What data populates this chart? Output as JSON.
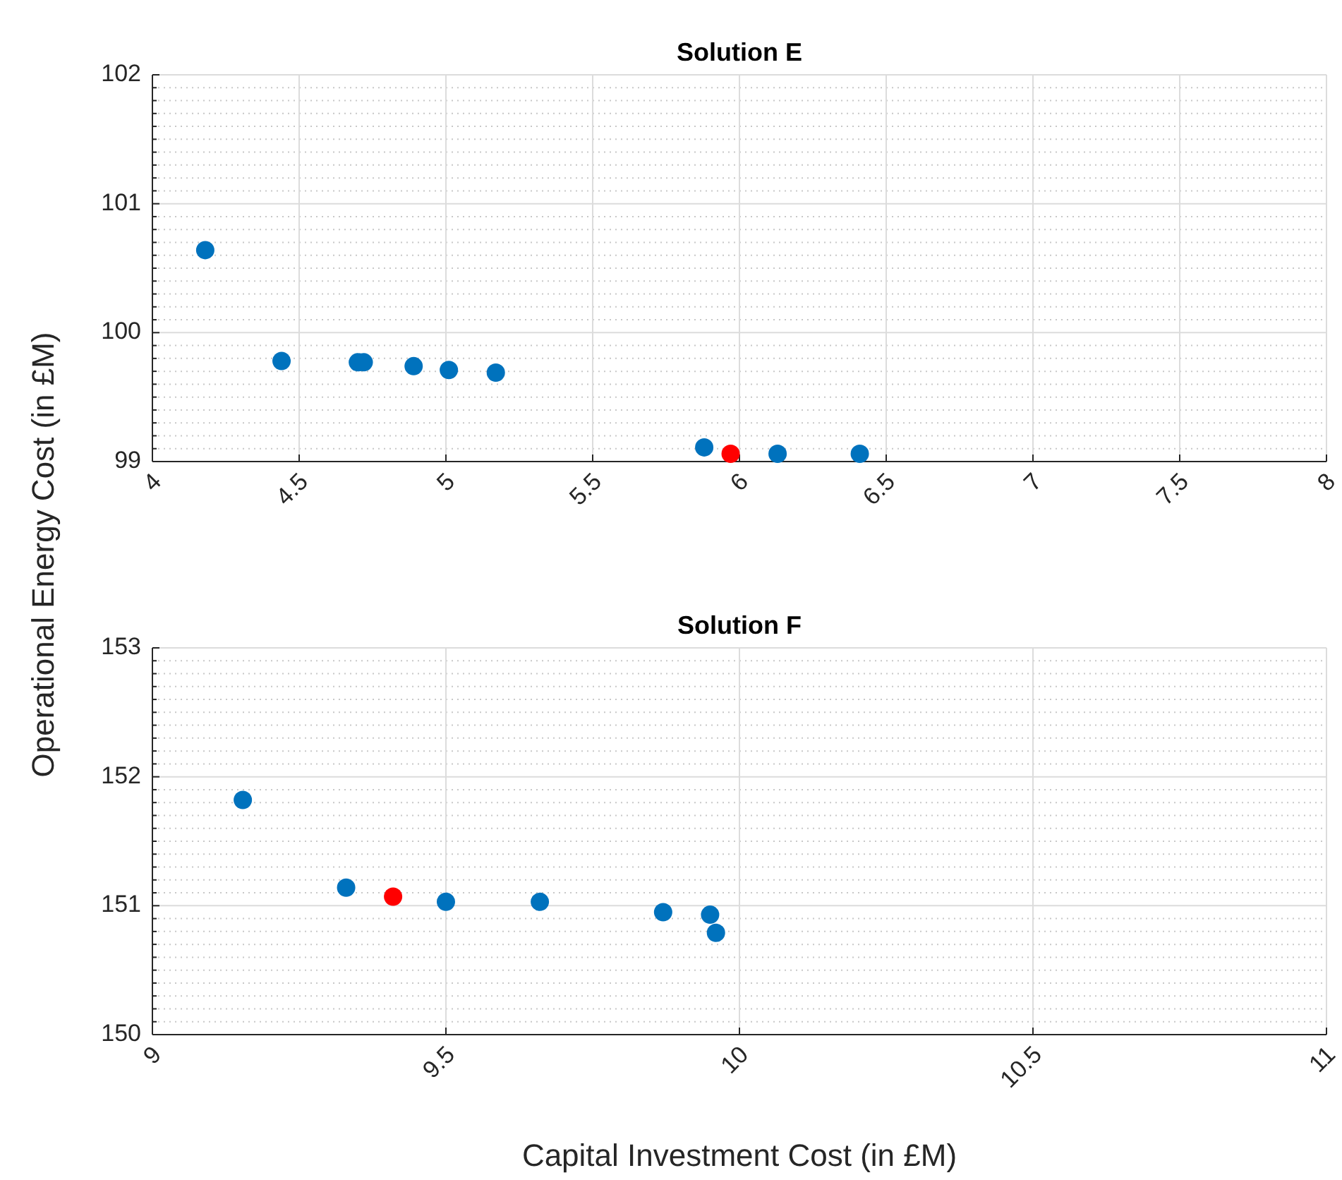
{
  "chart_data": [
    {
      "type": "scatter",
      "title": "Solution E",
      "ylabel": "Operational Energy Cost (in £M)",
      "xlim": [
        4,
        8
      ],
      "xticks": [
        4,
        4.5,
        5,
        5.5,
        6,
        6.5,
        7,
        7.5,
        8
      ],
      "ylim": [
        99,
        102
      ],
      "yticks": [
        99,
        {
          "value": 99.1,
          "label": null
        },
        {
          "value": 99.2,
          "label": null
        },
        {
          "value": 99.3,
          "label": null
        },
        {
          "value": 99.4,
          "label": null
        },
        {
          "value": 99.5,
          "label": null
        },
        {
          "value": 99.6,
          "label": null
        },
        {
          "value": 99.7,
          "label": null
        },
        {
          "value": 99.8,
          "label": null
        },
        {
          "value": 99.9,
          "label": null
        },
        100,
        {
          "value": 100.1,
          "label": null
        },
        {
          "value": 100.2,
          "label": null
        },
        {
          "value": 100.3,
          "label": null
        },
        {
          "value": 100.4,
          "label": null
        },
        {
          "value": 100.5,
          "label": null
        },
        {
          "value": 100.6,
          "label": null
        },
        {
          "value": 100.7,
          "label": null
        },
        {
          "value": 100.8,
          "label": null
        },
        {
          "value": 100.9,
          "label": null
        },
        101,
        {
          "value": 101.1,
          "label": null
        },
        {
          "value": 101.2,
          "label": null
        },
        {
          "value": 101.3,
          "label": null
        },
        {
          "value": 101.4,
          "label": null
        },
        {
          "value": 101.5,
          "label": null
        },
        {
          "value": 101.6,
          "label": null
        },
        {
          "value": 101.7,
          "label": null
        },
        {
          "value": 101.8,
          "label": null
        },
        {
          "value": 101.9,
          "label": null
        },
        102
      ],
      "grid": true,
      "marker": "circle",
      "series": [
        {
          "color": "#0072bd",
          "x": [
            4.18,
            4.44,
            4.7,
            4.72,
            4.89,
            5.01,
            5.17,
            5.88,
            6.13,
            6.41
          ],
          "values": [
            100.64,
            99.78,
            99.77,
            99.77,
            99.74,
            99.71,
            99.69,
            99.11,
            99.06,
            99.06
          ]
        },
        {
          "color": "#ff0000",
          "x": [
            5.97
          ],
          "values": [
            99.06
          ]
        }
      ]
    },
    {
      "type": "scatter",
      "title": "Solution F",
      "xlabel": "Capital Investment Cost (in £M)",
      "xlim": [
        9,
        11
      ],
      "xticks": [
        9,
        9.5,
        10,
        10.5,
        11
      ],
      "ylim": [
        150,
        153
      ],
      "yticks": [
        150,
        {
          "value": 150.1,
          "label": null
        },
        {
          "value": 150.2,
          "label": null
        },
        {
          "value": 150.3,
          "label": null
        },
        {
          "value": 150.4,
          "label": null
        },
        {
          "value": 150.5,
          "label": null
        },
        {
          "value": 150.6,
          "label": null
        },
        {
          "value": 150.7,
          "label": null
        },
        {
          "value": 150.8,
          "label": null
        },
        {
          "value": 150.9,
          "label": null
        },
        151,
        {
          "value": 151.1,
          "label": null
        },
        {
          "value": 151.2,
          "label": null
        },
        {
          "value": 151.3,
          "label": null
        },
        {
          "value": 151.4,
          "label": null
        },
        {
          "value": 151.5,
          "label": null
        },
        {
          "value": 151.6,
          "label": null
        },
        {
          "value": 151.7,
          "label": null
        },
        {
          "value": 151.8,
          "label": null
        },
        {
          "value": 151.9,
          "label": null
        },
        152,
        {
          "value": 152.1,
          "label": null
        },
        {
          "value": 152.2,
          "label": null
        },
        {
          "value": 152.3,
          "label": null
        },
        {
          "value": 152.4,
          "label": null
        },
        {
          "value": 152.5,
          "label": null
        },
        {
          "value": 152.6,
          "label": null
        },
        {
          "value": 152.7,
          "label": null
        },
        {
          "value": 152.8,
          "label": null
        },
        {
          "value": 152.9,
          "label": null
        },
        153
      ],
      "grid": true,
      "marker": "circle",
      "series": [
        {
          "color": "#0072bd",
          "x": [
            9.154,
            9.33,
            9.5,
            9.66,
            9.87,
            9.95,
            9.96
          ],
          "values": [
            151.82,
            151.14,
            151.03,
            151.03,
            150.95,
            150.93,
            150.79
          ]
        },
        {
          "color": "#ff0000",
          "x": [
            9.41
          ],
          "values": [
            151.07
          ]
        }
      ]
    }
  ]
}
